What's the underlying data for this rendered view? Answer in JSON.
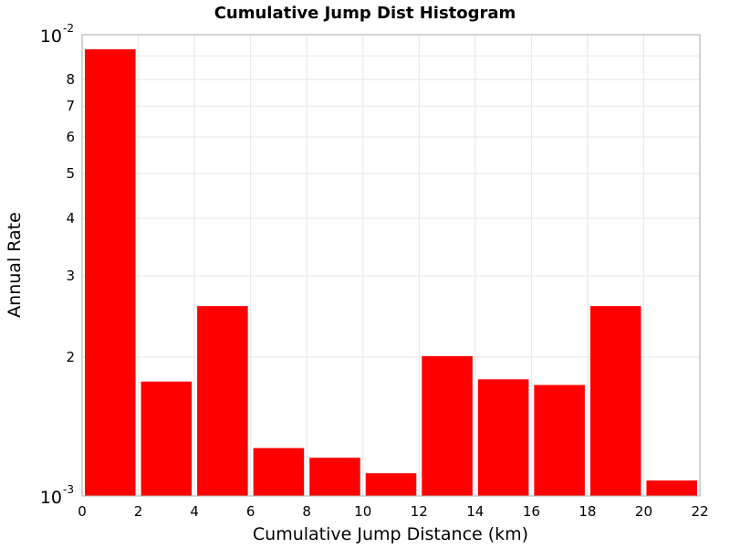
{
  "chart_data": {
    "type": "bar",
    "title": "Cumulative Jump Dist Histogram",
    "xlabel": "Cumulative Jump Distance (km)",
    "ylabel": "Annual Rate",
    "xlim": [
      0,
      22
    ],
    "ylim": [
      0.001,
      0.01
    ],
    "yscale": "log",
    "grid": true,
    "bar_color": "#ff0000",
    "x_ticks": [
      "0",
      "2",
      "4",
      "6",
      "8",
      "10",
      "12",
      "14",
      "16",
      "18",
      "20",
      "22"
    ],
    "y_minor_ticks": [
      "2",
      "3",
      "4",
      "5",
      "6",
      "7",
      "8"
    ],
    "y_decade_ticks": [
      {
        "base": "10",
        "exp": "-3"
      },
      {
        "base": "10",
        "exp": "-2"
      }
    ],
    "bins": [
      {
        "start": 0,
        "end": 2,
        "value": 0.0093
      },
      {
        "start": 2,
        "end": 4,
        "value": 0.00177
      },
      {
        "start": 4,
        "end": 6,
        "value": 0.00258
      },
      {
        "start": 6,
        "end": 8,
        "value": 0.00127
      },
      {
        "start": 8,
        "end": 10,
        "value": 0.00121
      },
      {
        "start": 10,
        "end": 12,
        "value": 0.00112
      },
      {
        "start": 12,
        "end": 14,
        "value": 0.00201
      },
      {
        "start": 14,
        "end": 16,
        "value": 0.00179
      },
      {
        "start": 16,
        "end": 18,
        "value": 0.00174
      },
      {
        "start": 18,
        "end": 20,
        "value": 0.00258
      },
      {
        "start": 20,
        "end": 22,
        "value": 0.00108
      }
    ]
  }
}
